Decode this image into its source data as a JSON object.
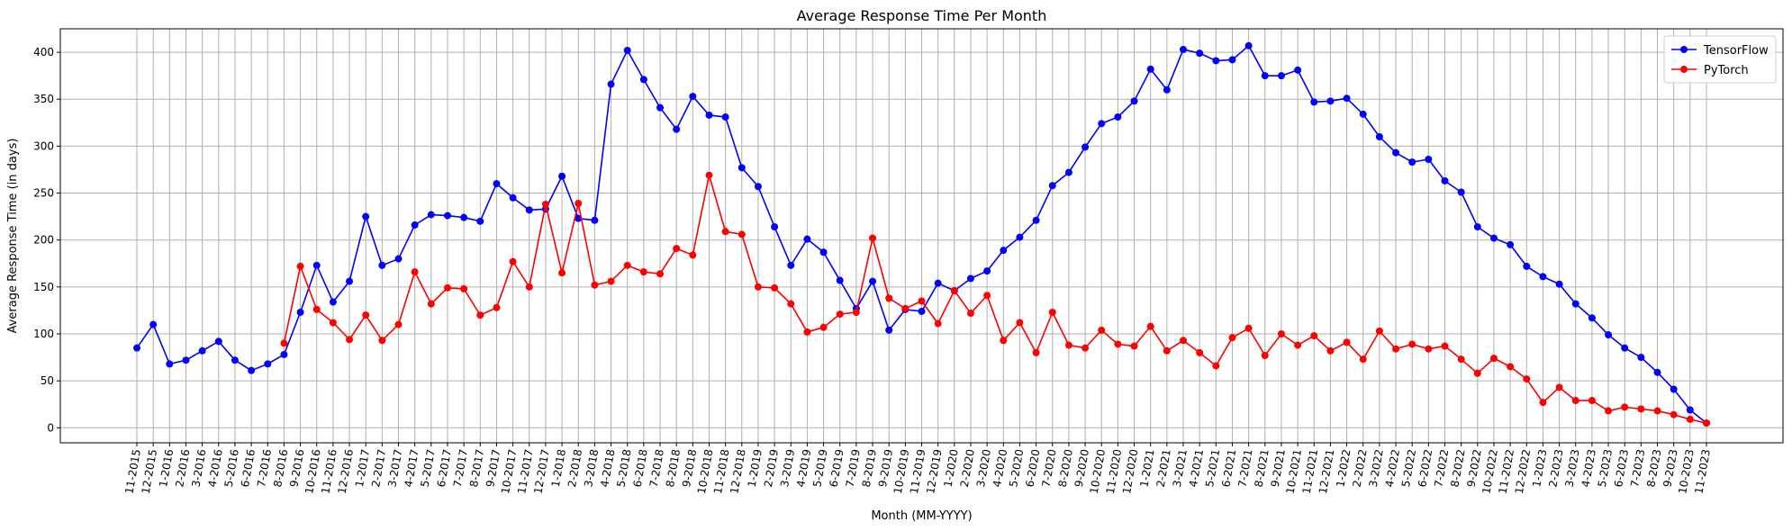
{
  "chart_data": {
    "type": "line",
    "title": "Average Response Time Per Month",
    "xlabel": "Month (MM-YYYY)",
    "ylabel": "Average Response Time (in days)",
    "ylim": [
      -16,
      425
    ],
    "yticks": [
      0,
      50,
      100,
      150,
      200,
      250,
      300,
      350,
      400
    ],
    "grid": true,
    "legend_position": "top-right",
    "categories": [
      "11-2015",
      "12-2015",
      "1-2016",
      "2-2016",
      "3-2016",
      "4-2016",
      "5-2016",
      "6-2016",
      "7-2016",
      "8-2016",
      "9-2016",
      "10-2016",
      "11-2016",
      "12-2016",
      "1-2017",
      "2-2017",
      "3-2017",
      "4-2017",
      "5-2017",
      "6-2017",
      "7-2017",
      "8-2017",
      "9-2017",
      "10-2017",
      "11-2017",
      "12-2017",
      "1-2018",
      "2-2018",
      "3-2018",
      "4-2018",
      "5-2018",
      "6-2018",
      "7-2018",
      "8-2018",
      "9-2018",
      "10-2018",
      "11-2018",
      "12-2018",
      "1-2019",
      "2-2019",
      "3-2019",
      "4-2019",
      "5-2019",
      "6-2019",
      "7-2019",
      "8-2019",
      "9-2019",
      "10-2019",
      "11-2019",
      "12-2019",
      "1-2020",
      "2-2020",
      "3-2020",
      "4-2020",
      "5-2020",
      "6-2020",
      "7-2020",
      "8-2020",
      "9-2020",
      "10-2020",
      "11-2020",
      "12-2020",
      "1-2021",
      "2-2021",
      "3-2021",
      "4-2021",
      "5-2021",
      "6-2021",
      "7-2021",
      "8-2021",
      "9-2021",
      "10-2021",
      "11-2021",
      "12-2021",
      "1-2022",
      "2-2022",
      "3-2022",
      "4-2022",
      "5-2022",
      "6-2022",
      "7-2022",
      "8-2022",
      "9-2022",
      "10-2022",
      "11-2022",
      "12-2022",
      "1-2023",
      "2-2023",
      "3-2023",
      "4-2023",
      "5-2023",
      "6-2023",
      "7-2023",
      "8-2023",
      "9-2023",
      "10-2023",
      "11-2023"
    ],
    "series": [
      {
        "name": "TensorFlow",
        "color": "#0000ff",
        "values": [
          85,
          110,
          68,
          72,
          82,
          92,
          72,
          61,
          68,
          78,
          123,
          173,
          134,
          156,
          225,
          173,
          180,
          216,
          227,
          226,
          224,
          220,
          260,
          245,
          232,
          233,
          268,
          223,
          221,
          366,
          402,
          371,
          341,
          318,
          353,
          333,
          331,
          277,
          257,
          214,
          173,
          201,
          187,
          157,
          127,
          156,
          104,
          126,
          124,
          154,
          146,
          159,
          167,
          189,
          203,
          221,
          258,
          272,
          299,
          324,
          331,
          348,
          382,
          360,
          403,
          399,
          391,
          392,
          407,
          375,
          375,
          381,
          347,
          348,
          351,
          334,
          310,
          293,
          283,
          286,
          263,
          251,
          214,
          202,
          195,
          172,
          161,
          153,
          132,
          117,
          99,
          85,
          75,
          59,
          41,
          19,
          5
        ]
      },
      {
        "name": "PyTorch",
        "color": "#ff0000",
        "values": [
          null,
          null,
          null,
          null,
          null,
          null,
          null,
          null,
          null,
          90,
          172,
          126,
          112,
          94,
          120,
          93,
          110,
          166,
          132,
          149,
          148,
          120,
          128,
          177,
          150,
          238,
          165,
          239,
          152,
          156,
          173,
          166,
          164,
          191,
          184,
          269,
          209,
          206,
          150,
          149,
          132,
          102,
          107,
          121,
          123,
          202,
          138,
          127,
          135,
          111,
          146,
          122,
          141,
          93,
          112,
          80,
          123,
          88,
          85,
          104,
          89,
          87,
          108,
          82,
          93,
          80,
          66,
          96,
          106,
          77,
          100,
          88,
          98,
          82,
          91,
          73,
          103,
          84,
          89,
          84,
          87,
          73,
          58,
          74,
          65,
          52,
          27,
          43,
          29,
          29,
          18,
          22,
          20,
          18,
          14,
          9,
          5
        ]
      }
    ]
  }
}
